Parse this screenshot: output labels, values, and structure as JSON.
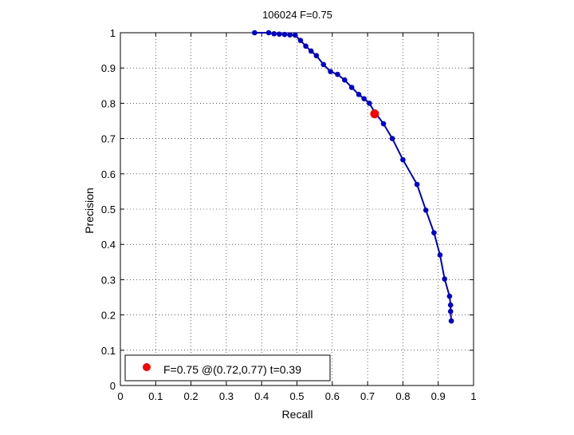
{
  "chart_data": {
    "type": "line",
    "title": "106024 F=0.75",
    "xlabel": "Recall",
    "ylabel": "Precision",
    "xlim": [
      0,
      1
    ],
    "ylim": [
      0,
      1
    ],
    "xticks": [
      "0",
      "0.1",
      "0.2",
      "0.3",
      "0.4",
      "0.5",
      "0.6",
      "0.7",
      "0.8",
      "0.9",
      "1"
    ],
    "yticks": [
      "0",
      "0.1",
      "0.2",
      "0.3",
      "0.4",
      "0.5",
      "0.6",
      "0.7",
      "0.8",
      "0.9",
      "1"
    ],
    "grid": true,
    "grid_style": "dotted",
    "legend_position": "bottom-left",
    "series": [
      {
        "color": "#0000cc",
        "marker": "filled-circle",
        "x": [
          0.38,
          0.42,
          0.435,
          0.45,
          0.465,
          0.48,
          0.495,
          0.51,
          0.525,
          0.54,
          0.555,
          0.575,
          0.595,
          0.615,
          0.635,
          0.655,
          0.675,
          0.69,
          0.705,
          0.72,
          0.745,
          0.77,
          0.8,
          0.84,
          0.865,
          0.888,
          0.905,
          0.918,
          0.932,
          0.935,
          0.935,
          0.937
        ],
        "y": [
          1.0,
          1.0,
          0.997,
          0.996,
          0.995,
          0.994,
          0.993,
          0.978,
          0.962,
          0.948,
          0.935,
          0.91,
          0.89,
          0.882,
          0.866,
          0.845,
          0.825,
          0.813,
          0.8,
          0.775,
          0.742,
          0.7,
          0.64,
          0.57,
          0.497,
          0.433,
          0.37,
          0.302,
          0.253,
          0.228,
          0.21,
          0.183
        ]
      }
    ],
    "highlight_point": {
      "x": 0.72,
      "y": 0.77,
      "color": "#ff0000",
      "label": "F=0.75 @(0.72,0.77) t=0.39"
    }
  }
}
